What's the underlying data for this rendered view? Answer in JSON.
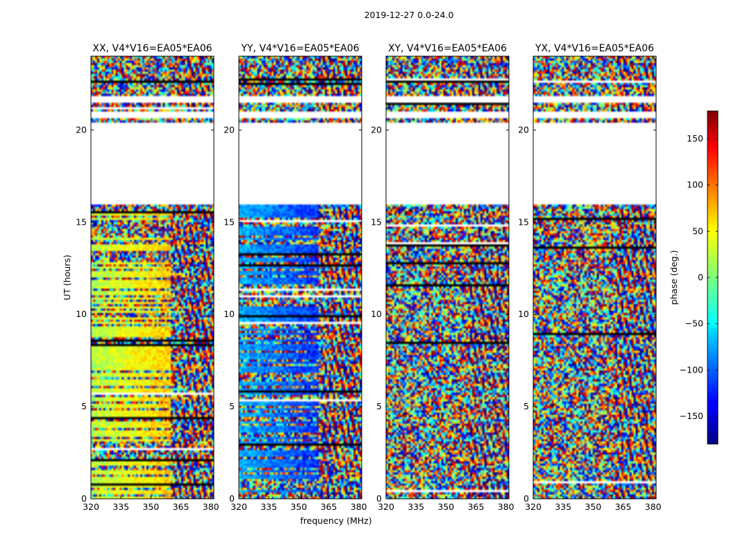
{
  "chart_data": {
    "type": "heatmap",
    "suptitle": "2019-12-27 0.0-24.0",
    "panels": [
      {
        "title": "XX, V4*V16=EA05*EA06",
        "pol": "XX"
      },
      {
        "title": "YY, V4*V16=EA05*EA06",
        "pol": "YY"
      },
      {
        "title": "XY, V4*V16=EA05*EA06",
        "pol": "XY"
      },
      {
        "title": "YX, V4*V16=EA05*EA06",
        "pol": "YX"
      }
    ],
    "xlabel": "frequency (MHz)",
    "ylabel": "UT (hours)",
    "xlim": [
      320,
      381.5
    ],
    "ylim": [
      0,
      24
    ],
    "xticks": [
      320,
      335,
      350,
      365,
      380
    ],
    "yticks": [
      0,
      5,
      10,
      15,
      20
    ],
    "colorbar": {
      "label": "phase (deg.)",
      "range": [
        -180,
        180
      ],
      "ticks": [
        -150,
        -100,
        -50,
        0,
        50,
        100,
        150
      ],
      "tick_labels": [
        "−150",
        "−100",
        "−50",
        "0",
        "50",
        "100",
        "150"
      ],
      "colormap": "jet"
    },
    "data_gaps_hours": [
      [
        16.0,
        20.4
      ],
      [
        20.6,
        21.0
      ],
      [
        21.5,
        21.8
      ]
    ],
    "colors": {
      "background": "#ffffff",
      "axis": "#000000"
    }
  }
}
